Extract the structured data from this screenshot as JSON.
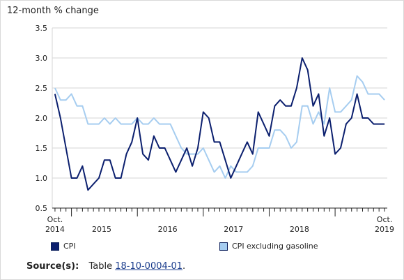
{
  "chart_data": {
    "type": "line",
    "ylabel": "12-month % change",
    "ylim": [
      0.5,
      3.5
    ],
    "yticks": [
      0.5,
      1.0,
      1.5,
      2.0,
      2.5,
      3.0,
      3.5
    ],
    "ytick_labels": [
      "0.5",
      "1.0",
      "1.5",
      "2.0",
      "2.5",
      "3.0",
      "3.5"
    ],
    "x_start_label": [
      "Oct.",
      "2014"
    ],
    "x_end_label": [
      "Oct.",
      "2019"
    ],
    "year_labels": [
      "2015",
      "2016",
      "2017",
      "2018"
    ],
    "x": [
      "2014-10",
      "2014-11",
      "2014-12",
      "2015-01",
      "2015-02",
      "2015-03",
      "2015-04",
      "2015-05",
      "2015-06",
      "2015-07",
      "2015-08",
      "2015-09",
      "2015-10",
      "2015-11",
      "2015-12",
      "2016-01",
      "2016-02",
      "2016-03",
      "2016-04",
      "2016-05",
      "2016-06",
      "2016-07",
      "2016-08",
      "2016-09",
      "2016-10",
      "2016-11",
      "2016-12",
      "2017-01",
      "2017-02",
      "2017-03",
      "2017-04",
      "2017-05",
      "2017-06",
      "2017-07",
      "2017-08",
      "2017-09",
      "2017-10",
      "2017-11",
      "2017-12",
      "2018-01",
      "2018-02",
      "2018-03",
      "2018-04",
      "2018-05",
      "2018-06",
      "2018-07",
      "2018-08",
      "2018-09",
      "2018-10",
      "2018-11",
      "2018-12",
      "2019-01",
      "2019-02",
      "2019-03",
      "2019-04",
      "2019-05",
      "2019-06",
      "2019-07",
      "2019-08",
      "2019-09",
      "2019-10"
    ],
    "series": [
      {
        "name": "CPI",
        "color": "#0b1f6e",
        "values": [
          2.4,
          2.0,
          1.5,
          1.0,
          1.0,
          1.2,
          0.8,
          0.9,
          1.0,
          1.3,
          1.3,
          1.0,
          1.0,
          1.4,
          1.6,
          2.0,
          1.4,
          1.3,
          1.7,
          1.5,
          1.5,
          1.3,
          1.1,
          1.3,
          1.5,
          1.2,
          1.5,
          2.1,
          2.0,
          1.6,
          1.6,
          1.3,
          1.0,
          1.2,
          1.4,
          1.6,
          1.4,
          2.1,
          1.9,
          1.7,
          2.2,
          2.3,
          2.2,
          2.2,
          2.5,
          3.0,
          2.8,
          2.2,
          2.4,
          1.7,
          2.0,
          1.4,
          1.5,
          1.9,
          2.0,
          2.4,
          2.0,
          2.0,
          1.9,
          1.9,
          1.9
        ]
      },
      {
        "name": "CPI excluding gasoline",
        "color": "#a6cdf0",
        "values": [
          2.5,
          2.3,
          2.3,
          2.4,
          2.2,
          2.2,
          1.9,
          1.9,
          1.9,
          2.0,
          1.9,
          2.0,
          1.9,
          1.9,
          1.9,
          2.0,
          1.9,
          1.9,
          2.0,
          1.9,
          1.9,
          1.9,
          1.7,
          1.5,
          1.4,
          1.4,
          1.4,
          1.5,
          1.3,
          1.1,
          1.2,
          1.0,
          1.2,
          1.1,
          1.1,
          1.1,
          1.2,
          1.5,
          1.5,
          1.5,
          1.8,
          1.8,
          1.7,
          1.5,
          1.6,
          2.2,
          2.2,
          1.9,
          2.1,
          1.9,
          2.5,
          2.1,
          2.1,
          2.2,
          2.3,
          2.7,
          2.6,
          2.4,
          2.4,
          2.4,
          2.3
        ]
      }
    ],
    "grid": true,
    "legend_position": "bottom"
  },
  "source": {
    "label": "Source(s):",
    "text": "Table",
    "link_text": "18-10-0004-01",
    "suffix": "."
  }
}
